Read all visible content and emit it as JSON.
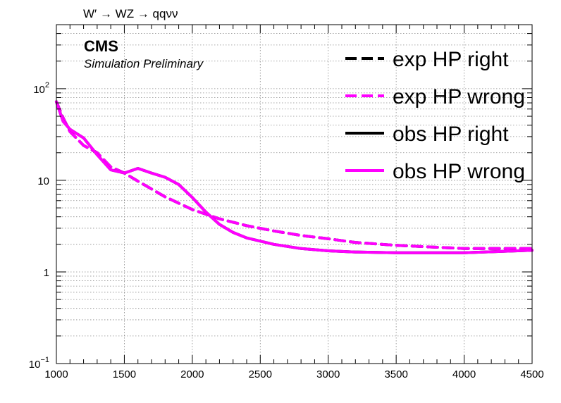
{
  "chart_data": {
    "type": "line",
    "title": "W′ → WZ → qqνν",
    "experiment": "CMS",
    "subtitle": "Simulation Preliminary",
    "xlabel": "",
    "ylabel": "",
    "xlim": [
      1000,
      4500
    ],
    "ylim": [
      0.1,
      500
    ],
    "ylog": true,
    "grid": true,
    "legend_position": "top-right",
    "x_ticks": [
      "1000",
      "1500",
      "2000",
      "2500",
      "3000",
      "3500",
      "4000",
      "4500"
    ],
    "y_ticks": [
      {
        "value": 0.1,
        "base": "10",
        "exp": "−1"
      },
      {
        "value": 1,
        "base": "1",
        "exp": ""
      },
      {
        "value": 10,
        "base": "10",
        "exp": ""
      },
      {
        "value": 100,
        "base": "10",
        "exp": "2"
      }
    ],
    "series": [
      {
        "name": "exp HP right",
        "color": "#000000",
        "dash": true,
        "x": [
          1000,
          1050,
          1100,
          1200,
          1300,
          1400,
          1500,
          1600,
          1800,
          2000,
          2200,
          2400,
          2600,
          2800,
          3000,
          3200,
          3500,
          4000,
          4500
        ],
        "y": [
          72,
          48,
          34,
          24,
          20,
          14,
          12,
          9.8,
          6.6,
          4.8,
          3.8,
          3.2,
          2.8,
          2.5,
          2.3,
          2.1,
          1.95,
          1.8,
          1.8
        ]
      },
      {
        "name": "exp HP wrong",
        "color": "#ff00ff",
        "dash": true,
        "x": [
          1000,
          1050,
          1100,
          1200,
          1300,
          1400,
          1500,
          1600,
          1800,
          2000,
          2200,
          2400,
          2600,
          2800,
          3000,
          3200,
          3500,
          4000,
          4500
        ],
        "y": [
          72,
          48,
          34,
          24,
          20,
          14,
          12,
          9.8,
          6.6,
          4.8,
          3.8,
          3.2,
          2.8,
          2.5,
          2.3,
          2.1,
          1.95,
          1.8,
          1.8
        ]
      },
      {
        "name": "obs HP right",
        "color": "#000000",
        "dash": false,
        "x": [
          1000,
          1050,
          1100,
          1200,
          1300,
          1400,
          1500,
          1600,
          1700,
          1800,
          1900,
          2000,
          2100,
          2200,
          2300,
          2400,
          2600,
          2800,
          3000,
          3200,
          3500,
          4000,
          4500
        ],
        "y": [
          72,
          44,
          36,
          29,
          19,
          13,
          12,
          13.5,
          12,
          10.8,
          9,
          6.5,
          4.5,
          3.3,
          2.7,
          2.35,
          2.0,
          1.8,
          1.7,
          1.65,
          1.62,
          1.62,
          1.72
        ]
      },
      {
        "name": "obs HP wrong",
        "color": "#ff00ff",
        "dash": false,
        "x": [
          1000,
          1050,
          1100,
          1200,
          1300,
          1400,
          1500,
          1600,
          1700,
          1800,
          1900,
          2000,
          2100,
          2200,
          2300,
          2400,
          2600,
          2800,
          3000,
          3200,
          3500,
          4000,
          4500
        ],
        "y": [
          72,
          44,
          36,
          29,
          19,
          13,
          12,
          13.5,
          12,
          10.8,
          9,
          6.5,
          4.5,
          3.3,
          2.7,
          2.35,
          2.0,
          1.8,
          1.7,
          1.65,
          1.62,
          1.62,
          1.72
        ]
      }
    ]
  }
}
